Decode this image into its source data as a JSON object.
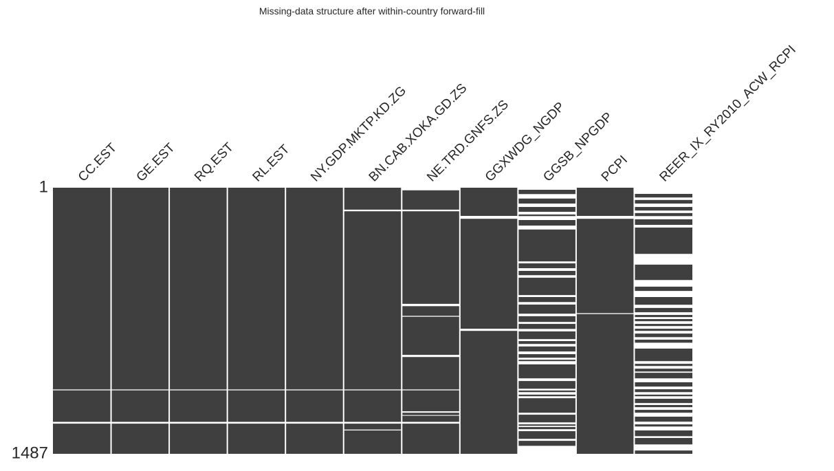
{
  "chart_data": {
    "type": "matrix",
    "title": "Missing-data structure after within-country forward-fill",
    "ylim": [
      1,
      1487
    ],
    "yticks": [
      1,
      1487
    ],
    "color": "#3f3f3f",
    "columns": [
      {
        "name": "CC.EST",
        "missing": [
          [
            1128,
            1132
          ],
          [
            1309,
            1318
          ]
        ]
      },
      {
        "name": "GE.EST",
        "missing": [
          [
            1128,
            1132
          ],
          [
            1309,
            1318
          ]
        ]
      },
      {
        "name": "RQ.EST",
        "missing": [
          [
            1128,
            1132
          ],
          [
            1309,
            1318
          ]
        ]
      },
      {
        "name": "RL.EST",
        "missing": [
          [
            1128,
            1132
          ],
          [
            1309,
            1318
          ]
        ]
      },
      {
        "name": "NY.GDP.MKTP.KD.ZG",
        "missing": [
          [
            1128,
            1132
          ],
          [
            1309,
            1318
          ]
        ]
      },
      {
        "name": "BN.CAB.XOKA.GD.ZS",
        "missing": [
          [
            124,
            132
          ],
          [
            1128,
            1132
          ],
          [
            1309,
            1318
          ],
          [
            1352,
            1356
          ]
        ]
      },
      {
        "name": "NE.TRD.GNFS.ZS",
        "missing": [
          [
            1,
            15
          ],
          [
            124,
            132
          ],
          [
            650,
            662
          ],
          [
            717,
            721
          ],
          [
            935,
            946
          ],
          [
            1128,
            1132
          ],
          [
            1250,
            1257
          ],
          [
            1271,
            1274
          ],
          [
            1309,
            1318
          ]
        ]
      },
      {
        "name": "GGXWDG_NGDP",
        "missing": [
          [
            159,
            174
          ],
          [
            789,
            800
          ]
        ]
      },
      {
        "name": "GGSB_NPGDP",
        "missing": [
          [
            1,
            12
          ],
          [
            37,
            61
          ],
          [
            90,
            108
          ],
          [
            136,
            150
          ],
          [
            160,
            181
          ],
          [
            213,
            234
          ],
          [
            413,
            423
          ],
          [
            451,
            465
          ],
          [
            490,
            503
          ],
          [
            601,
            611
          ],
          [
            640,
            653
          ],
          [
            705,
            718
          ],
          [
            751,
            761
          ],
          [
            790,
            803
          ],
          [
            847,
            857
          ],
          [
            874,
            887
          ],
          [
            916,
            930
          ],
          [
            951,
            961
          ],
          [
            970,
            987
          ],
          [
            1066,
            1080
          ],
          [
            1124,
            1133
          ],
          [
            1143,
            1156
          ],
          [
            1166,
            1176
          ],
          [
            1258,
            1268
          ],
          [
            1312,
            1322
          ],
          [
            1331,
            1337
          ],
          [
            1350,
            1360
          ],
          [
            1404,
            1414
          ],
          [
            1443,
            1487
          ]
        ]
      },
      {
        "name": "PCPI",
        "missing": [
          [
            159,
            174
          ],
          [
            702,
            706
          ]
        ]
      },
      {
        "name": "REER_IX_RY2010_ACW_RCPI",
        "missing": [
          [
            1,
            35
          ],
          [
            56,
            69
          ],
          [
            90,
            108
          ],
          [
            129,
            142
          ],
          [
            160,
            177
          ],
          [
            209,
            223
          ],
          [
            371,
            430
          ],
          [
            517,
            553
          ],
          [
            578,
            611
          ],
          [
            655,
            672
          ],
          [
            697,
            711
          ],
          [
            724,
            734
          ],
          [
            747,
            761
          ],
          [
            774,
            788
          ],
          [
            801,
            815
          ],
          [
            836,
            849
          ],
          [
            867,
            899
          ],
          [
            970,
            984
          ],
          [
            997,
            1011
          ],
          [
            1028,
            1034
          ],
          [
            1066,
            1087
          ],
          [
            1112,
            1126
          ],
          [
            1143,
            1156
          ],
          [
            1166,
            1179
          ],
          [
            1204,
            1214
          ],
          [
            1227,
            1241
          ],
          [
            1258,
            1279
          ],
          [
            1308,
            1322
          ],
          [
            1335,
            1356
          ],
          [
            1389,
            1398
          ],
          [
            1435,
            1468
          ]
        ]
      }
    ]
  }
}
